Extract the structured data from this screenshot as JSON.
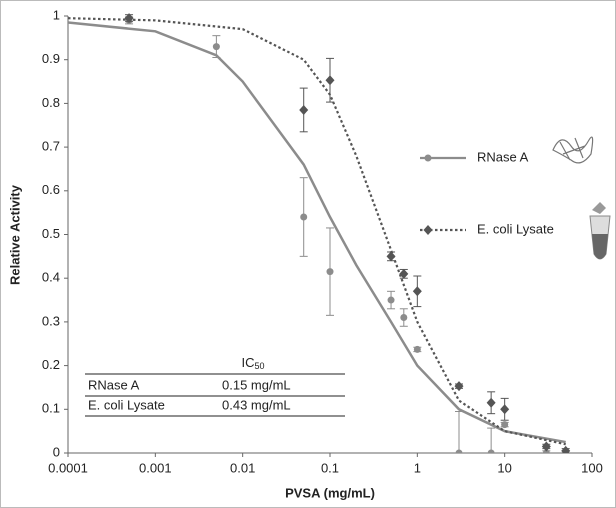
{
  "chart_data": {
    "type": "scatter",
    "xlabel": "PVSA (mg/mL)",
    "ylabel": "Relative Activity",
    "xscale": "log",
    "xlim": [
      0.0001,
      100
    ],
    "xticks": [
      0.0001,
      0.001,
      0.01,
      0.1,
      1,
      10,
      100
    ],
    "ylim": [
      0,
      1
    ],
    "yticks": [
      0,
      0.1,
      0.2,
      0.3,
      0.4,
      0.5,
      0.6,
      0.7,
      0.8,
      0.9,
      1
    ],
    "series": [
      {
        "name": "RNase A",
        "color": "#8c8c8c",
        "marker": "circle",
        "dash": "solid",
        "x": [
          0.0005,
          0.005,
          0.05,
          0.1,
          0.5,
          0.7,
          1,
          3,
          7,
          10,
          30,
          50
        ],
        "values": [
          0.99,
          0.93,
          0.54,
          0.415,
          0.35,
          0.31,
          0.237,
          0.0,
          0.0,
          0.065,
          0.0,
          0.0
        ],
        "errors": [
          0.008,
          0.025,
          0.09,
          0.1,
          0.02,
          0.02,
          0.005,
          0.095,
          0.057,
          0.005,
          0.005,
          0.005
        ],
        "fit": {
          "x": [
            0.0001,
            0.001,
            0.005,
            0.01,
            0.05,
            0.1,
            0.2,
            0.5,
            1,
            3,
            10,
            50
          ],
          "values": [
            0.985,
            0.965,
            0.91,
            0.85,
            0.66,
            0.54,
            0.43,
            0.3,
            0.2,
            0.1,
            0.05,
            0.025
          ]
        }
      },
      {
        "name": "E. coli Lysate",
        "color": "#555555",
        "marker": "diamond",
        "dash": "dotted",
        "x": [
          0.0005,
          0.05,
          0.1,
          0.5,
          0.7,
          1,
          3,
          7,
          10,
          30,
          50
        ],
        "values": [
          0.995,
          0.785,
          0.853,
          0.45,
          0.41,
          0.37,
          0.153,
          0.115,
          0.1,
          0.015,
          0.005
        ],
        "errors": [
          0.008,
          0.05,
          0.05,
          0.01,
          0.01,
          0.035,
          0.005,
          0.025,
          0.025,
          0.005,
          0.005
        ],
        "fit": {
          "x": [
            0.0001,
            0.001,
            0.01,
            0.05,
            0.1,
            0.2,
            0.43,
            1,
            3,
            10,
            50
          ],
          "values": [
            0.995,
            0.99,
            0.97,
            0.9,
            0.82,
            0.68,
            0.5,
            0.3,
            0.12,
            0.05,
            0.02
          ]
        }
      }
    ],
    "table": {
      "header": {
        "text": "IC",
        "sub": "50"
      },
      "rows": [
        [
          "RNase A",
          "0.15 mg/mL"
        ],
        [
          "E. coli Lysate",
          "0.43 mg/mL"
        ]
      ]
    }
  }
}
